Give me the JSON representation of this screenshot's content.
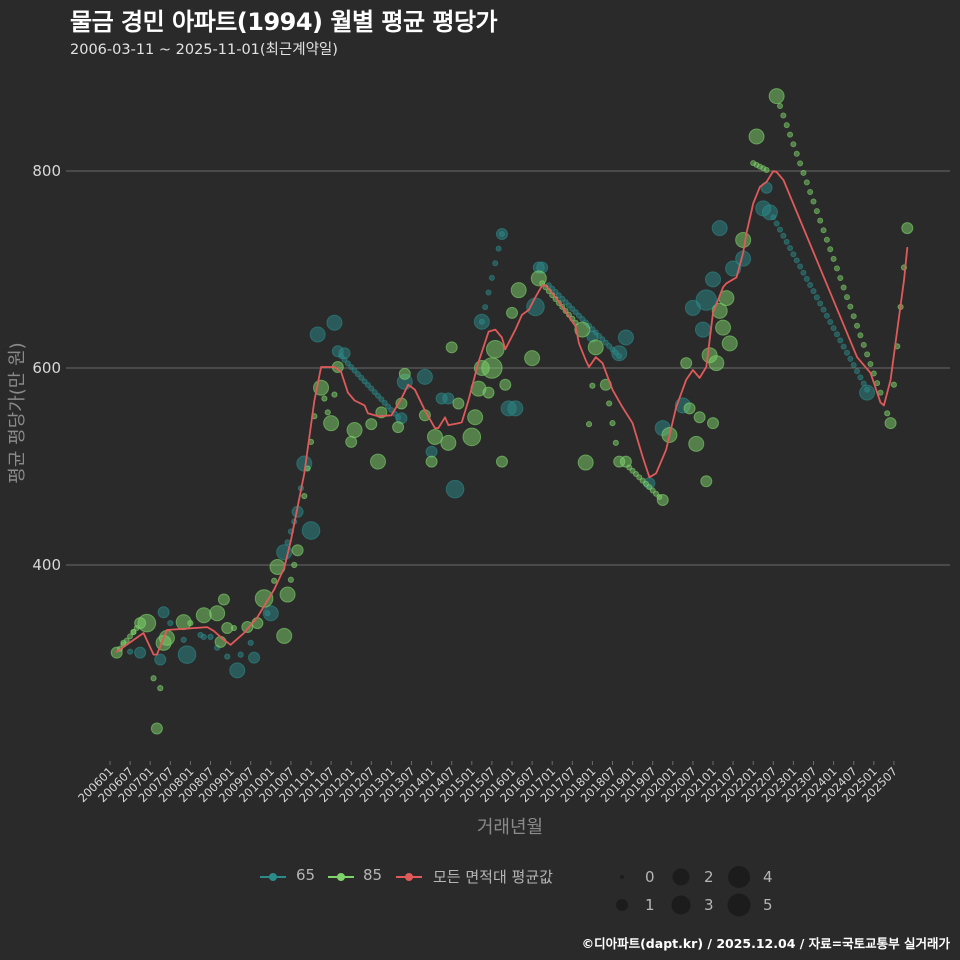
{
  "title": "물금 경민 아파트(1994) 월별 평균 평당가",
  "subtitle": "2006-03-11 ~ 2025-11-01(최근계약일)",
  "caption": "©디아파트(dapt.kr) / 2025.12.04 / 자료=국토교통부 실거래가",
  "axes": {
    "y_title": "평균 평당가(만 원)",
    "x_title": "거래년월"
  },
  "legend": {
    "series": [
      {
        "label": "65",
        "color": "#2b8a8a"
      },
      {
        "label": "85",
        "color": "#7ed46a"
      },
      {
        "label": "모든 면적대 평균값",
        "color": "#e05a5a"
      }
    ],
    "sizes": [
      "0",
      "1",
      "2",
      "3",
      "4",
      "5"
    ]
  },
  "colors": {
    "background": "#2a2a2a",
    "grid": "#6b6b6b",
    "tick_text": "#d8d8d8"
  },
  "chart_data": {
    "type": "scatter",
    "title": "물금 경민 아파트(1994) 월별 평균 평당가",
    "subtitle": "2006-03-11 ~ 2025-11-01(최근계약일)",
    "xlabel": "거래년월",
    "ylabel": "평균 평당가(만 원)",
    "ylim": [
      200,
      910
    ],
    "yticks": [
      400,
      600,
      800
    ],
    "grid": "horizontal",
    "legend_position": "bottom",
    "xticks": [
      "200601",
      "200607",
      "200701",
      "200707",
      "200801",
      "200807",
      "200901",
      "200907",
      "201001",
      "201007",
      "201101",
      "201107",
      "201201",
      "201207",
      "201301",
      "201307",
      "201401",
      "201407",
      "201501",
      "201507",
      "201601",
      "201607",
      "201701",
      "201707",
      "201801",
      "201807",
      "201901",
      "201907",
      "202001",
      "202007",
      "202101",
      "202107",
      "202201",
      "202207",
      "202301",
      "202307",
      "202401",
      "202407",
      "202501",
      "202507"
    ],
    "size_legend": [
      0,
      1,
      2,
      3,
      4,
      5
    ],
    "series": [
      {
        "name": "65",
        "color": "#2b8a8a",
        "point_format": [
          "YYYYMM",
          "평당가",
          "거래건수"
        ],
        "points": [
          [
            "200607",
            312,
            0
          ],
          [
            "200610",
            311,
            1
          ],
          [
            "200704",
            304,
            1
          ],
          [
            "200705",
            352,
            1
          ],
          [
            "200707",
            341,
            0
          ],
          [
            "200711",
            324,
            0
          ],
          [
            "200712",
            309,
            3
          ],
          [
            "200804",
            329,
            0
          ],
          [
            "200805",
            327,
            0
          ],
          [
            "200807",
            327,
            0
          ],
          [
            "200809",
            316,
            0
          ],
          [
            "200812",
            307,
            0
          ],
          [
            "200903",
            293,
            2
          ],
          [
            "200904",
            309,
            0
          ],
          [
            "200907",
            321,
            0
          ],
          [
            "200908",
            306,
            1
          ],
          [
            "200912",
            351,
            0
          ],
          [
            "201001",
            351,
            2
          ],
          [
            "201005",
            413,
            2
          ],
          [
            "201006",
            423,
            0
          ],
          [
            "201007",
            434,
            0
          ],
          [
            "201008",
            444,
            0
          ],
          [
            "201009",
            454,
            1
          ],
          [
            "201010",
            478,
            0
          ],
          [
            "201011",
            503,
            2
          ],
          [
            "201101",
            435,
            3
          ],
          [
            "201103",
            634,
            2
          ],
          [
            "201108",
            646,
            2
          ],
          [
            "201109",
            617,
            1
          ],
          [
            "201111",
            615,
            1
          ],
          [
            "201304",
            549,
            1
          ],
          [
            "201305",
            586,
            2
          ],
          [
            "201311",
            591,
            2
          ],
          [
            "201401",
            515,
            1
          ],
          [
            "201404",
            569,
            1
          ],
          [
            "201406",
            569,
            1
          ],
          [
            "201408",
            477,
            3
          ],
          [
            "201504",
            647,
            2
          ],
          [
            "201510",
            736,
            1
          ],
          [
            "201512",
            559,
            2
          ],
          [
            "201602",
            559,
            2
          ],
          [
            "201608",
            662,
            3
          ],
          [
            "201609",
            702,
            1
          ],
          [
            "201610",
            702,
            1
          ],
          [
            "201801",
            632,
            1
          ],
          [
            "201809",
            615,
            2
          ],
          [
            "201811",
            631,
            2
          ],
          [
            "201906",
            483,
            1
          ],
          [
            "201910",
            539,
            2
          ],
          [
            "202004",
            562,
            2
          ],
          [
            "202007",
            661,
            2
          ],
          [
            "202010",
            639,
            2
          ],
          [
            "202011",
            669,
            4
          ],
          [
            "202101",
            690,
            2
          ],
          [
            "202103",
            742,
            2
          ],
          [
            "202107",
            701,
            2
          ],
          [
            "202110",
            711,
            2
          ],
          [
            "202204",
            762,
            2
          ],
          [
            "202205",
            783,
            1
          ],
          [
            "202206",
            758,
            2
          ],
          [
            "202411",
            575,
            2
          ]
        ],
        "interpolated": [
          {
            "from": [
              "201110",
              612
            ],
            "to": [
              "201303",
              550
            ]
          },
          {
            "from": [
              "201504",
              647
            ],
            "to": [
              "201510",
              736
            ]
          },
          {
            "from": [
              "201612",
              684
            ],
            "to": [
              "201809",
              612
            ]
          },
          {
            "from": [
              "202207",
              753
            ],
            "to": [
              "202411",
              578
            ]
          }
        ]
      },
      {
        "name": "85",
        "color": "#7ed46a",
        "point_format": [
          "YYYYMM",
          "평당가",
          "거래건수"
        ],
        "points": [
          [
            "200603",
            311,
            1
          ],
          [
            "200605",
            321,
            0
          ],
          [
            "200608",
            332,
            0
          ],
          [
            "200610",
            341,
            1
          ],
          [
            "200612",
            341,
            3
          ],
          [
            "200702",
            285,
            0
          ],
          [
            "200703",
            234,
            1
          ],
          [
            "200704",
            275,
            0
          ],
          [
            "200705",
            321,
            2
          ],
          [
            "200706",
            326,
            2
          ],
          [
            "200711",
            342,
            2
          ],
          [
            "200801",
            341,
            0
          ],
          [
            "200805",
            349,
            2
          ],
          [
            "200809",
            351,
            2
          ],
          [
            "200810",
            322,
            1
          ],
          [
            "200811",
            365,
            1
          ],
          [
            "200812",
            336,
            1
          ],
          [
            "200902",
            336,
            0
          ],
          [
            "200906",
            337,
            1
          ],
          [
            "200909",
            341,
            1
          ],
          [
            "200911",
            366,
            3
          ],
          [
            "201002",
            384,
            0
          ],
          [
            "201003",
            398,
            2
          ],
          [
            "201005",
            328,
            2
          ],
          [
            "201006",
            370,
            2
          ],
          [
            "201007",
            385,
            0
          ],
          [
            "201008",
            400,
            0
          ],
          [
            "201009",
            415,
            1
          ],
          [
            "201011",
            470,
            0
          ],
          [
            "201012",
            498,
            0
          ],
          [
            "201101",
            525,
            0
          ],
          [
            "201102",
            551,
            0
          ],
          [
            "201104",
            580,
            2
          ],
          [
            "201105",
            569,
            0
          ],
          [
            "201106",
            555,
            0
          ],
          [
            "201107",
            544,
            2
          ],
          [
            "201108",
            573,
            0
          ],
          [
            "201109",
            601,
            1
          ],
          [
            "201201",
            525,
            1
          ],
          [
            "201202",
            537,
            2
          ],
          [
            "201207",
            543,
            1
          ],
          [
            "201209",
            505,
            2
          ],
          [
            "201210",
            555,
            1
          ],
          [
            "201303",
            540,
            1
          ],
          [
            "201304",
            564,
            1
          ],
          [
            "201305",
            594,
            1
          ],
          [
            "201311",
            552,
            1
          ],
          [
            "201401",
            505,
            1
          ],
          [
            "201402",
            530,
            2
          ],
          [
            "201406",
            524,
            2
          ],
          [
            "201407",
            621,
            1
          ],
          [
            "201409",
            564,
            1
          ],
          [
            "201501",
            530,
            3
          ],
          [
            "201502",
            550,
            2
          ],
          [
            "201503",
            579,
            2
          ],
          [
            "201504",
            600,
            2
          ],
          [
            "201506",
            575,
            1
          ],
          [
            "201507",
            600,
            4
          ],
          [
            "201508",
            619,
            3
          ],
          [
            "201510",
            505,
            1
          ],
          [
            "201511",
            583,
            1
          ],
          [
            "201601",
            656,
            1
          ],
          [
            "201603",
            679,
            2
          ],
          [
            "201607",
            610,
            2
          ],
          [
            "201609",
            691,
            2
          ],
          [
            "201710",
            639,
            2
          ],
          [
            "201711",
            504,
            2
          ],
          [
            "201712",
            543,
            0
          ],
          [
            "201801",
            582,
            0
          ],
          [
            "201802",
            621,
            2
          ],
          [
            "201805",
            583,
            1
          ],
          [
            "201806",
            564,
            0
          ],
          [
            "201807",
            544,
            0
          ],
          [
            "201808",
            524,
            0
          ],
          [
            "201809",
            505,
            1
          ],
          [
            "201811",
            505,
            1
          ],
          [
            "201910",
            466,
            1
          ],
          [
            "201912",
            532,
            2
          ],
          [
            "202005",
            605,
            1
          ],
          [
            "202006",
            559,
            1
          ],
          [
            "202008",
            523,
            2
          ],
          [
            "202009",
            550,
            1
          ],
          [
            "202011",
            485,
            1
          ],
          [
            "202012",
            613,
            2
          ],
          [
            "202101",
            544,
            1
          ],
          [
            "202102",
            605,
            2
          ],
          [
            "202103",
            658,
            2
          ],
          [
            "202104",
            641,
            2
          ],
          [
            "202105",
            671,
            2
          ],
          [
            "202106",
            625,
            2
          ],
          [
            "202110",
            730,
            2
          ],
          [
            "202202",
            835,
            2
          ],
          [
            "202208",
            876,
            2
          ],
          [
            "202505",
            554,
            0
          ],
          [
            "202506",
            544,
            1
          ],
          [
            "202507",
            583,
            0
          ],
          [
            "202508",
            622,
            0
          ],
          [
            "202509",
            662,
            0
          ],
          [
            "202510",
            702,
            0
          ],
          [
            "202511",
            742,
            1
          ]
        ],
        "interpolated": [
          {
            "from": [
              "200604",
              315
            ],
            "to": [
              "200609",
              336
            ]
          },
          {
            "from": [
              "201610",
              686
            ],
            "to": [
              "201708",
              646
            ]
          },
          {
            "from": [
              "201812",
              499
            ],
            "to": [
              "201909",
              469
            ]
          },
          {
            "from": [
              "202201",
              808
            ],
            "to": [
              "202205",
              801
            ]
          },
          {
            "from": [
              "202209",
              866
            ],
            "to": [
              "202503",
              575
            ]
          }
        ]
      },
      {
        "name": "모든 면적대 평균값",
        "type": "line",
        "color": "#e05a5a",
        "x": [
          "200603",
          "200611",
          "200702",
          "200703",
          "200706",
          "200806",
          "200808",
          "200811",
          "200901",
          "200905",
          "200909",
          "201002",
          "201005",
          "201007",
          "201011",
          "201102",
          "201104",
          "201108",
          "201110",
          "201112",
          "201202",
          "201205",
          "201206",
          "201209",
          "201301",
          "201304",
          "201306",
          "201308",
          "201311",
          "201402",
          "201403",
          "201405",
          "201406",
          "201409",
          "201410",
          "201412",
          "201503",
          "201506",
          "201508",
          "201510",
          "201511",
          "201602",
          "201604",
          "201606",
          "201608",
          "201610",
          "201611",
          "201702",
          "201706",
          "201708",
          "201709",
          "201711",
          "201712",
          "201802",
          "201804",
          "201807",
          "201810",
          "201901",
          "201904",
          "201906",
          "201908",
          "201911",
          "202002",
          "202005",
          "202007",
          "202009",
          "202011",
          "202101",
          "202104",
          "202105",
          "202108",
          "202110",
          "202111",
          "202201",
          "202203",
          "202205",
          "202207",
          "202208",
          "202210",
          "202408",
          "202412",
          "202503",
          "202504",
          "202506",
          "202508",
          "202510",
          "202511"
        ],
        "y": [
          312,
          331,
          309,
          309,
          334,
          337,
          333,
          324,
          319,
          331,
          347,
          375,
          397,
          425,
          493,
          567,
          601,
          601,
          596,
          575,
          567,
          562,
          554,
          551,
          552,
          569,
          583,
          578,
          557,
          539,
          539,
          550,
          542,
          544,
          545,
          567,
          606,
          637,
          639,
          631,
          619,
          639,
          654,
          659,
          672,
          684,
          684,
          672,
          652,
          642,
          625,
          608,
          601,
          611,
          605,
          578,
          560,
          544,
          510,
          489,
          493,
          517,
          560,
          588,
          598,
          590,
          601,
          656,
          682,
          686,
          692,
          717,
          737,
          767,
          784,
          789,
          800,
          799,
          791,
          611,
          595,
          565,
          562,
          588,
          639,
          689,
          722
        ]
      }
    ]
  }
}
